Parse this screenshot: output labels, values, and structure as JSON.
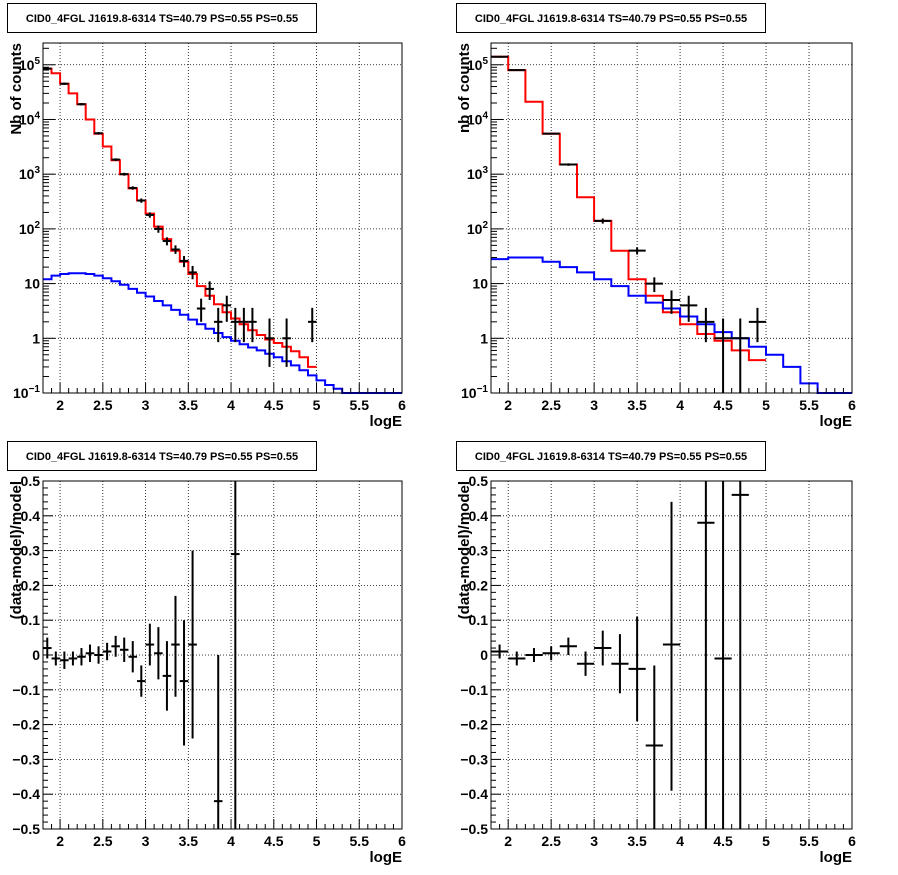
{
  "chart_data": [
    {
      "type": "histogram",
      "title": "CID0_4FGL J1619.8-6314 TS=40.79 PS=0.55 PS=0.55",
      "xlabel": "logE",
      "ylabel": "Nb of counts",
      "xlim": [
        1.8,
        6.0
      ],
      "ylim": [
        0.1,
        250000
      ],
      "yscale": "log",
      "grid": true,
      "x_ticks": [
        "2",
        "2.5",
        "3",
        "3.5",
        "4",
        "4.5",
        "5",
        "5.5",
        "6"
      ],
      "y_ticks": [
        "10^-1",
        "1",
        "10",
        "10^2",
        "10^3",
        "10^4",
        "10^5"
      ],
      "series": [
        {
          "color": "#ff0000",
          "edges": [
            1.8,
            1.9,
            2.0,
            2.1,
            2.2,
            2.3,
            2.4,
            2.5,
            2.6,
            2.7,
            2.8,
            2.9,
            3.0,
            3.1,
            3.2,
            3.3,
            3.4,
            3.5,
            3.6,
            3.7,
            3.8,
            3.9,
            4.0,
            4.1,
            4.2,
            4.3,
            4.4,
            4.5,
            4.6,
            4.7,
            4.8,
            4.9,
            5.0
          ],
          "values": [
            85000,
            70000,
            45000,
            30000,
            19000,
            10000,
            5500,
            3200,
            1800,
            1000,
            550,
            330,
            190,
            110,
            65,
            40,
            25,
            15,
            9,
            6,
            4.2,
            3.0,
            2.3,
            1.8,
            1.4,
            1.15,
            0.95,
            0.82,
            0.7,
            0.58,
            0.45,
            0.3
          ]
        },
        {
          "color": "#0000ff",
          "edges": [
            1.8,
            1.9,
            2.0,
            2.1,
            2.2,
            2.3,
            2.4,
            2.5,
            2.6,
            2.7,
            2.8,
            2.9,
            3.0,
            3.1,
            3.2,
            3.3,
            3.4,
            3.5,
            3.6,
            3.7,
            3.8,
            3.9,
            4.0,
            4.1,
            4.2,
            4.3,
            4.4,
            4.5,
            4.6,
            4.7,
            4.8,
            4.9,
            5.0,
            5.1,
            5.2,
            5.3,
            5.4,
            5.5,
            5.6,
            5.7,
            5.8,
            5.9,
            6.0
          ],
          "values": [
            12,
            14,
            15,
            15.5,
            15.5,
            15,
            14,
            12.5,
            11,
            9.5,
            8,
            6.8,
            5.8,
            4.8,
            4,
            3.3,
            2.7,
            2.2,
            1.8,
            1.5,
            1.25,
            1.05,
            0.9,
            0.78,
            0.68,
            0.6,
            0.52,
            0.45,
            0.38,
            0.32,
            0.26,
            0.21,
            0.17,
            0.14,
            0.12,
            0.1,
            0.1,
            0.1,
            0.1,
            0.1,
            0.1,
            0.1
          ]
        }
      ],
      "points": [
        {
          "x": 1.85,
          "y": 85000,
          "ylo": 80000,
          "yhi": 90000,
          "xerr": 0.05
        },
        {
          "x": 2.05,
          "y": 45000,
          "ylo": 43000,
          "yhi": 47000,
          "xerr": 0.05
        },
        {
          "x": 2.25,
          "y": 19000,
          "ylo": 18000,
          "yhi": 20000,
          "xerr": 0.05
        },
        {
          "x": 2.45,
          "y": 5600,
          "ylo": 5300,
          "yhi": 5900,
          "xerr": 0.05
        },
        {
          "x": 2.65,
          "y": 1850,
          "ylo": 1750,
          "yhi": 1950,
          "xerr": 0.05
        },
        {
          "x": 2.75,
          "y": 1000,
          "ylo": 940,
          "yhi": 1060,
          "xerr": 0.05
        },
        {
          "x": 2.85,
          "y": 560,
          "ylo": 520,
          "yhi": 600,
          "xerr": 0.05
        },
        {
          "x": 2.95,
          "y": 330,
          "ylo": 300,
          "yhi": 360,
          "xerr": 0.05
        },
        {
          "x": 3.05,
          "y": 180,
          "ylo": 160,
          "yhi": 200,
          "xerr": 0.05
        },
        {
          "x": 3.15,
          "y": 100,
          "ylo": 85,
          "yhi": 115,
          "xerr": 0.05
        },
        {
          "x": 3.25,
          "y": 60,
          "ylo": 50,
          "yhi": 70,
          "xerr": 0.05
        },
        {
          "x": 3.35,
          "y": 42,
          "ylo": 35,
          "yhi": 50,
          "xerr": 0.05
        },
        {
          "x": 3.45,
          "y": 26,
          "ylo": 20,
          "yhi": 32,
          "xerr": 0.05
        },
        {
          "x": 3.55,
          "y": 16,
          "ylo": 12,
          "yhi": 21,
          "xerr": 0.05
        },
        {
          "x": 3.65,
          "y": 3.5,
          "ylo": 2.0,
          "yhi": 5.3,
          "xerr": 0.05
        },
        {
          "x": 3.75,
          "y": 8,
          "ylo": 5,
          "yhi": 11,
          "xerr": 0.05
        },
        {
          "x": 3.85,
          "y": 2,
          "ylo": 0.85,
          "yhi": 3.6,
          "xerr": 0.05
        },
        {
          "x": 3.95,
          "y": 4,
          "ylo": 2,
          "yhi": 6,
          "xerr": 0.05
        },
        {
          "x": 4.05,
          "y": 2,
          "ylo": 0.85,
          "yhi": 3.6,
          "xerr": 0.05
        },
        {
          "x": 4.15,
          "y": 2,
          "ylo": 0.85,
          "yhi": 3.6,
          "xerr": 0.05
        },
        {
          "x": 4.25,
          "y": 2,
          "ylo": 0.85,
          "yhi": 3.6,
          "xerr": 0.05
        },
        {
          "x": 4.45,
          "y": 1,
          "ylo": 0.3,
          "yhi": 2.3,
          "xerr": 0.05
        },
        {
          "x": 4.65,
          "y": 1,
          "ylo": 0.3,
          "yhi": 2.3,
          "xerr": 0.05
        },
        {
          "x": 4.95,
          "y": 2,
          "ylo": 0.85,
          "yhi": 3.6,
          "xerr": 0.05
        }
      ]
    },
    {
      "type": "histogram",
      "title": "CID0_4FGL J1619.8-6314 TS=40.79 PS=0.55 PS=0.55",
      "xlabel": "logE",
      "ylabel": "nb of counts",
      "xlim": [
        1.8,
        6.0
      ],
      "ylim": [
        0.1,
        250000
      ],
      "yscale": "log",
      "grid": true,
      "x_ticks": [
        "2",
        "2.5",
        "3",
        "3.5",
        "4",
        "4.5",
        "5",
        "5.5",
        "6"
      ],
      "y_ticks": [
        "10^-1",
        "1",
        "10",
        "10^2",
        "10^3",
        "10^4",
        "10^5"
      ],
      "series": [
        {
          "color": "#ff0000",
          "edges": [
            1.8,
            2.0,
            2.2,
            2.4,
            2.6,
            2.8,
            3.0,
            3.2,
            3.4,
            3.6,
            3.8,
            4.0,
            4.2,
            4.4,
            4.6,
            4.8,
            5.0
          ],
          "values": [
            140000,
            80000,
            21000,
            5500,
            1500,
            380,
            140,
            40,
            12,
            6,
            3,
            1.8,
            1.2,
            0.9,
            0.6,
            0.4
          ]
        },
        {
          "color": "#0000ff",
          "edges": [
            1.8,
            2.0,
            2.2,
            2.4,
            2.6,
            2.8,
            3.0,
            3.2,
            3.4,
            3.6,
            3.8,
            4.0,
            4.2,
            4.4,
            4.6,
            4.8,
            5.0,
            5.2,
            5.4,
            5.6,
            5.8,
            6.0
          ],
          "values": [
            28,
            30,
            30,
            25,
            20,
            16,
            12,
            9,
            6,
            4.5,
            3.5,
            2.5,
            1.8,
            1.3,
            1.0,
            0.7,
            0.5,
            0.3,
            0.15,
            0.1,
            0.1
          ]
        }
      ],
      "points": [
        {
          "x": 1.9,
          "y": 140000,
          "ylo": 135000,
          "yhi": 145000,
          "xerr": 0.1
        },
        {
          "x": 2.1,
          "y": 80000,
          "ylo": 77000,
          "yhi": 83000,
          "xerr": 0.1
        },
        {
          "x": 2.5,
          "y": 5500,
          "ylo": 5300,
          "yhi": 5700,
          "xerr": 0.1
        },
        {
          "x": 2.7,
          "y": 1500,
          "ylo": 1420,
          "yhi": 1580,
          "xerr": 0.1
        },
        {
          "x": 3.1,
          "y": 140,
          "ylo": 125,
          "yhi": 155,
          "xerr": 0.1
        },
        {
          "x": 3.5,
          "y": 40,
          "ylo": 34,
          "yhi": 46,
          "xerr": 0.1
        },
        {
          "x": 3.7,
          "y": 10,
          "ylo": 7,
          "yhi": 13,
          "xerr": 0.1
        },
        {
          "x": 3.9,
          "y": 5,
          "ylo": 2.8,
          "yhi": 7.5,
          "xerr": 0.1
        },
        {
          "x": 4.1,
          "y": 4,
          "ylo": 2,
          "yhi": 6,
          "xerr": 0.1
        },
        {
          "x": 4.3,
          "y": 2,
          "ylo": 0.85,
          "yhi": 3.6,
          "xerr": 0.1
        },
        {
          "x": 4.5,
          "y": 1,
          "ylo": 0.1,
          "yhi": 2.3,
          "xerr": 0.1
        },
        {
          "x": 4.7,
          "y": 1,
          "ylo": 0.1,
          "yhi": 2.3,
          "xerr": 0.1
        },
        {
          "x": 4.9,
          "y": 2,
          "ylo": 0.85,
          "yhi": 3.6,
          "xerr": 0.1
        }
      ]
    },
    {
      "type": "scatter",
      "title": "CID0_4FGL J1619.8-6314 TS=40.79 PS=0.55 PS=0.55",
      "xlabel": "logE",
      "ylabel": "(data-model)/model",
      "xlim": [
        1.8,
        6.0
      ],
      "ylim": [
        -0.5,
        0.5
      ],
      "grid": true,
      "x_ticks": [
        "2",
        "2.5",
        "3",
        "3.5",
        "4",
        "4.5",
        "5",
        "5.5",
        "6"
      ],
      "y_ticks": [
        "−0.5",
        "−0.4",
        "−0.3",
        "−0.2",
        "−0.1",
        "0",
        "0.1",
        "0.2",
        "0.3",
        "0.4",
        "0.5"
      ],
      "points": [
        {
          "x": 1.85,
          "y": 0.02,
          "ylo": -0.01,
          "yhi": 0.05,
          "xerr": 0.05
        },
        {
          "x": 1.95,
          "y": -0.01,
          "ylo": -0.03,
          "yhi": 0.01,
          "xerr": 0.05
        },
        {
          "x": 2.05,
          "y": -0.015,
          "ylo": -0.04,
          "yhi": 0.01,
          "xerr": 0.05
        },
        {
          "x": 2.15,
          "y": -0.01,
          "ylo": -0.03,
          "yhi": 0.01,
          "xerr": 0.05
        },
        {
          "x": 2.25,
          "y": -0.005,
          "ylo": -0.03,
          "yhi": 0.02,
          "xerr": 0.05
        },
        {
          "x": 2.35,
          "y": 0.005,
          "ylo": -0.02,
          "yhi": 0.03,
          "xerr": 0.05
        },
        {
          "x": 2.45,
          "y": 0.0,
          "ylo": -0.025,
          "yhi": 0.025,
          "xerr": 0.05
        },
        {
          "x": 2.55,
          "y": 0.01,
          "ylo": -0.015,
          "yhi": 0.035,
          "xerr": 0.05
        },
        {
          "x": 2.65,
          "y": 0.025,
          "ylo": -0.005,
          "yhi": 0.055,
          "xerr": 0.05
        },
        {
          "x": 2.75,
          "y": 0.015,
          "ylo": -0.02,
          "yhi": 0.05,
          "xerr": 0.05
        },
        {
          "x": 2.85,
          "y": -0.005,
          "ylo": -0.05,
          "yhi": 0.04,
          "xerr": 0.05
        },
        {
          "x": 2.95,
          "y": -0.075,
          "ylo": -0.12,
          "yhi": -0.03,
          "xerr": 0.05
        },
        {
          "x": 3.05,
          "y": 0.03,
          "ylo": -0.03,
          "yhi": 0.09,
          "xerr": 0.05
        },
        {
          "x": 3.15,
          "y": 0.005,
          "ylo": -0.07,
          "yhi": 0.08,
          "xerr": 0.05
        },
        {
          "x": 3.25,
          "y": -0.06,
          "ylo": -0.16,
          "yhi": 0.04,
          "xerr": 0.05
        },
        {
          "x": 3.35,
          "y": 0.03,
          "ylo": -0.12,
          "yhi": 0.17,
          "xerr": 0.05
        },
        {
          "x": 3.45,
          "y": -0.075,
          "ylo": -0.26,
          "yhi": 0.1,
          "xerr": 0.05
        },
        {
          "x": 3.55,
          "y": 0.03,
          "ylo": -0.24,
          "yhi": 0.3,
          "xerr": 0.05
        },
        {
          "x": 3.85,
          "y": -0.42,
          "ylo": -0.5,
          "yhi": 0.0,
          "xerr": 0.05
        },
        {
          "x": 4.05,
          "y": 0.29,
          "ylo": -0.5,
          "yhi": 0.5,
          "xerr": 0.05
        }
      ]
    },
    {
      "type": "scatter",
      "title": "CID0_4FGL J1619.8-6314 TS=40.79 PS=0.55 PS=0.55",
      "xlabel": "logE",
      "ylabel": "(data-model)/model",
      "xlim": [
        1.8,
        6.0
      ],
      "ylim": [
        -0.5,
        0.5
      ],
      "grid": true,
      "x_ticks": [
        "2",
        "2.5",
        "3",
        "3.5",
        "4",
        "4.5",
        "5",
        "5.5",
        "6"
      ],
      "y_ticks": [
        "−0.5",
        "−0.4",
        "−0.3",
        "−0.2",
        "−0.1",
        "0",
        "0.1",
        "0.2",
        "0.3",
        "0.4",
        "0.5"
      ],
      "points": [
        {
          "x": 1.9,
          "y": 0.01,
          "ylo": -0.01,
          "yhi": 0.03,
          "xerr": 0.1
        },
        {
          "x": 2.1,
          "y": -0.01,
          "ylo": -0.03,
          "yhi": 0.01,
          "xerr": 0.1
        },
        {
          "x": 2.3,
          "y": 0.0,
          "ylo": -0.02,
          "yhi": 0.02,
          "xerr": 0.1
        },
        {
          "x": 2.5,
          "y": 0.005,
          "ylo": -0.015,
          "yhi": 0.025,
          "xerr": 0.1
        },
        {
          "x": 2.7,
          "y": 0.025,
          "ylo": 0.0,
          "yhi": 0.05,
          "xerr": 0.1
        },
        {
          "x": 2.9,
          "y": -0.025,
          "ylo": -0.06,
          "yhi": 0.01,
          "xerr": 0.1
        },
        {
          "x": 3.1,
          "y": 0.02,
          "ylo": -0.03,
          "yhi": 0.07,
          "xerr": 0.1
        },
        {
          "x": 3.3,
          "y": -0.025,
          "ylo": -0.11,
          "yhi": 0.06,
          "xerr": 0.1
        },
        {
          "x": 3.5,
          "y": -0.04,
          "ylo": -0.19,
          "yhi": 0.11,
          "xerr": 0.1
        },
        {
          "x": 3.7,
          "y": -0.26,
          "ylo": -0.5,
          "yhi": -0.03,
          "xerr": 0.1
        },
        {
          "x": 3.9,
          "y": 0.03,
          "ylo": -0.39,
          "yhi": 0.44,
          "xerr": 0.1
        },
        {
          "x": 4.3,
          "y": 0.38,
          "ylo": -0.5,
          "yhi": 0.5,
          "xerr": 0.1
        },
        {
          "x": 4.5,
          "y": -0.01,
          "ylo": -0.5,
          "yhi": 0.5,
          "xerr": 0.1
        },
        {
          "x": 4.7,
          "y": 0.46,
          "ylo": -0.5,
          "yhi": 0.5,
          "xerr": 0.1
        }
      ]
    }
  ]
}
